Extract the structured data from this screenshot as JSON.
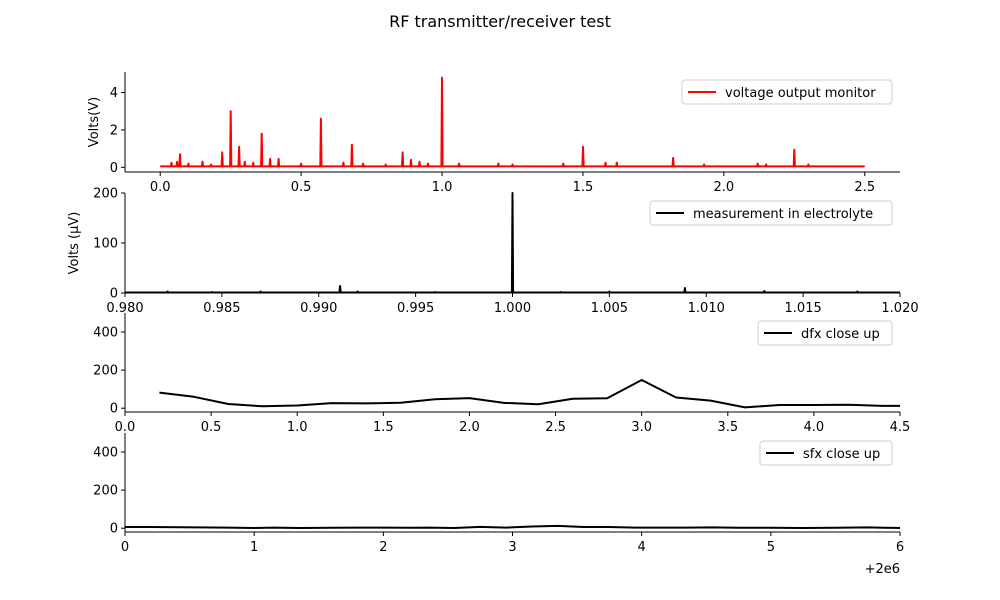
{
  "figure": {
    "title": "RF transmitter/receiver test"
  },
  "chart_data": [
    {
      "id": "p1",
      "type": "line",
      "ylabel": "Volts(V)",
      "xlim": [
        -0.125,
        2.625
      ],
      "ylim": [
        -0.25,
        5.1
      ],
      "xticks": [
        0.0,
        0.5,
        1.0,
        1.5,
        2.0,
        2.5
      ],
      "xtick_labels": [
        "0.0",
        "0.5",
        "1.0",
        "1.5",
        "2.0",
        "2.5"
      ],
      "yticks": [
        0,
        2,
        4
      ],
      "ytick_labels": [
        "0",
        "2",
        "4"
      ],
      "legend": "top-right",
      "series": [
        {
          "name": "voltage output monitor",
          "color": "#ff0000",
          "baseline": 0.05,
          "x_range": [
            0.0,
            2.5
          ],
          "spikes": [
            [
              0.04,
              0.25
            ],
            [
              0.06,
              0.3
            ],
            [
              0.07,
              0.7
            ],
            [
              0.1,
              0.2
            ],
            [
              0.15,
              0.3
            ],
            [
              0.18,
              0.15
            ],
            [
              0.22,
              0.8
            ],
            [
              0.25,
              3.0
            ],
            [
              0.28,
              1.1
            ],
            [
              0.3,
              0.3
            ],
            [
              0.33,
              0.25
            ],
            [
              0.36,
              1.8
            ],
            [
              0.39,
              0.45
            ],
            [
              0.42,
              0.45
            ],
            [
              0.5,
              0.2
            ],
            [
              0.57,
              2.6
            ],
            [
              0.65,
              0.25
            ],
            [
              0.68,
              1.2
            ],
            [
              0.72,
              0.2
            ],
            [
              0.8,
              0.15
            ],
            [
              0.86,
              0.8
            ],
            [
              0.89,
              0.4
            ],
            [
              0.92,
              0.3
            ],
            [
              0.95,
              0.2
            ],
            [
              1.0,
              4.8
            ],
            [
              1.06,
              0.2
            ],
            [
              1.2,
              0.2
            ],
            [
              1.25,
              0.15
            ],
            [
              1.43,
              0.2
            ],
            [
              1.5,
              1.1
            ],
            [
              1.58,
              0.25
            ],
            [
              1.62,
              0.25
            ],
            [
              1.82,
              0.5
            ],
            [
              1.93,
              0.15
            ],
            [
              2.12,
              0.2
            ],
            [
              2.15,
              0.15
            ],
            [
              2.25,
              0.95
            ],
            [
              2.3,
              0.15
            ]
          ]
        }
      ]
    },
    {
      "id": "p2",
      "type": "line",
      "ylabel": "Volts (μV)",
      "xlim": [
        0.98,
        1.02
      ],
      "ylim": [
        0,
        200
      ],
      "xticks": [
        0.98,
        0.985,
        0.99,
        0.995,
        1.0,
        1.005,
        1.01,
        1.015,
        1.02
      ],
      "xtick_labels": [
        "0.980",
        "0.985",
        "0.990",
        "0.995",
        "1.000",
        "1.005",
        "1.010",
        "1.015",
        "1.020"
      ],
      "yticks": [
        0,
        100,
        200
      ],
      "ytick_labels": [
        "0",
        "100",
        "200"
      ],
      "legend": "top-right",
      "series": [
        {
          "name": "measurement in electrolyte",
          "color": "#000000",
          "baseline": 1,
          "x_range": [
            0.98,
            1.02
          ],
          "spikes": [
            [
              0.9822,
              3
            ],
            [
              0.9845,
              2
            ],
            [
              0.987,
              3
            ],
            [
              0.9911,
              14
            ],
            [
              0.992,
              3
            ],
            [
              0.996,
              2
            ],
            [
              1.0,
              200
            ],
            [
              1.0025,
              2
            ],
            [
              1.005,
              3
            ],
            [
              1.0089,
              10
            ],
            [
              1.013,
              4
            ],
            [
              1.0178,
              3
            ]
          ]
        }
      ]
    },
    {
      "id": "p3",
      "type": "line",
      "xlim": [
        0,
        4.5
      ],
      "ylim": [
        -20,
        500
      ],
      "xticks": [
        0.0,
        0.5,
        1.0,
        1.5,
        2.0,
        2.5,
        3.0,
        3.5,
        4.0,
        4.5
      ],
      "xtick_labels": [
        "0.0",
        "0.5",
        "1.0",
        "1.5",
        "2.0",
        "2.5",
        "3.0",
        "3.5",
        "4.0",
        "4.5"
      ],
      "yticks": [
        0,
        200,
        400
      ],
      "ytick_labels": [
        "0",
        "200",
        "400"
      ],
      "legend": "top-right",
      "series": [
        {
          "name": "dfx close up",
          "color": "#000000",
          "x": [
            0.2,
            0.4,
            0.6,
            0.8,
            1.0,
            1.2,
            1.4,
            1.6,
            1.8,
            2.0,
            2.2,
            2.4,
            2.6,
            2.8,
            3.0,
            3.2,
            3.4,
            3.6,
            3.8,
            4.0,
            4.2,
            4.4,
            4.5
          ],
          "y": [
            82,
            60,
            22,
            10,
            14,
            27,
            25,
            29,
            47,
            53,
            28,
            21,
            50,
            52,
            148,
            56,
            40,
            4,
            17,
            17,
            18,
            12,
            12
          ]
        }
      ]
    },
    {
      "id": "p4",
      "type": "line",
      "xlim": [
        0,
        6
      ],
      "ylim": [
        -20,
        500
      ],
      "xticks": [
        0,
        1,
        2,
        3,
        4,
        5,
        6
      ],
      "xtick_labels": [
        "0",
        "1",
        "2",
        "3",
        "4",
        "5",
        "6"
      ],
      "x_offset_label": "+2e6",
      "yticks": [
        0,
        200,
        400
      ],
      "ytick_labels": [
        "0",
        "200",
        "400"
      ],
      "legend": "top-right",
      "series": [
        {
          "name": "sfx close up",
          "color": "#000000",
          "x": [
            0.0,
            0.2,
            0.55,
            0.8,
            1.0,
            1.15,
            1.35,
            1.6,
            1.8,
            2.0,
            2.2,
            2.35,
            2.55,
            2.75,
            2.95,
            3.15,
            3.35,
            3.55,
            3.75,
            3.95,
            4.15,
            4.35,
            4.55,
            4.75,
            5.0,
            5.25,
            5.5,
            5.75,
            6.0
          ],
          "y": [
            6,
            6,
            4,
            3,
            1,
            3,
            1,
            2,
            3,
            3,
            2,
            3,
            1,
            7,
            3,
            9,
            12,
            6,
            6,
            3,
            3,
            3,
            4,
            2,
            2,
            1,
            2,
            4,
            1
          ]
        }
      ]
    }
  ]
}
